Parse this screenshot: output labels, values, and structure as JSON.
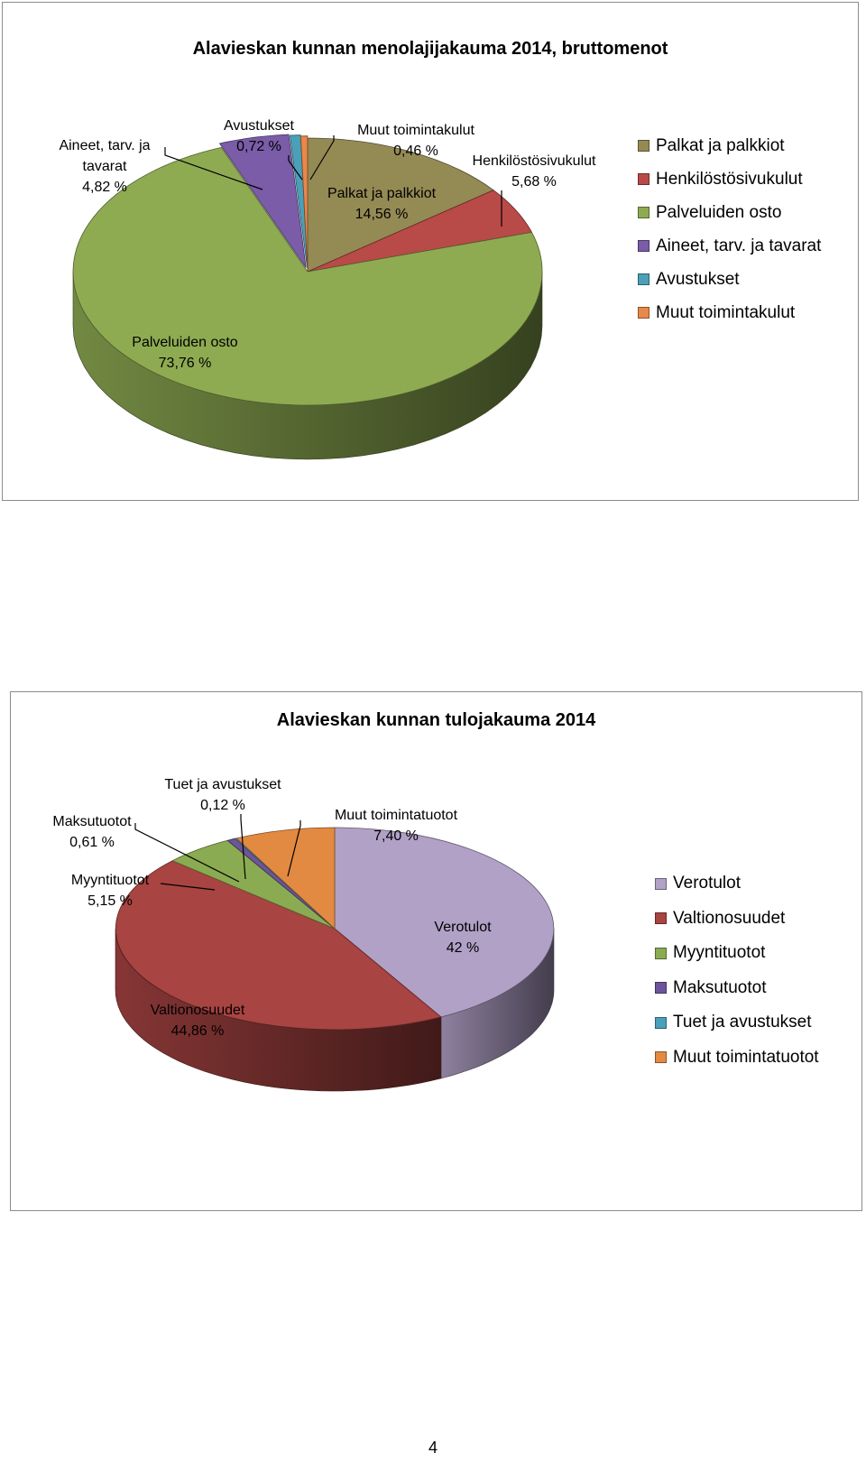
{
  "page_number": "4",
  "chart_data": [
    {
      "type": "pie",
      "title": "Alavieskan kunnan menolajijakauma 2014, bruttomenot",
      "legend_position": "right",
      "categories": [
        "Palkat ja palkkiot",
        "Henkilöstösivukulut",
        "Palveluiden osto",
        "Aineet, tarv. ja tavarat",
        "Avustukset",
        "Muut toimintakulut"
      ],
      "values": [
        14.56,
        5.68,
        73.76,
        4.82,
        0.72,
        0.46
      ],
      "colors": [
        "#948a54",
        "#b84a48",
        "#8eab52",
        "#7a5ca8",
        "#4aa0b8",
        "#e8884a"
      ],
      "label_lines": [
        [
          "Palkat ja palkkiot",
          "14,56 %"
        ],
        [
          "Henkilöstösivukulut",
          "5,68 %"
        ],
        [
          "Palveluiden osto",
          "73,76 %"
        ],
        [
          "Aineet, tarv. ja",
          "tavarat",
          "4,82 %"
        ],
        [
          "Avustukset",
          "0,72 %"
        ],
        [
          "Muut toimintakulut",
          "0,46 %"
        ]
      ]
    },
    {
      "type": "pie",
      "title": "Alavieskan kunnan  tulojakauma 2014",
      "legend_position": "right",
      "categories": [
        "Verotulot",
        "Valtionosuudet",
        "Myyntituotot",
        "Maksutuotot",
        "Tuet ja avustukset",
        "Muut toimintatuotot"
      ],
      "values": [
        42,
        44.86,
        5.15,
        0.61,
        0.12,
        7.4
      ],
      "colors": [
        "#b1a1c7",
        "#a84442",
        "#8bab52",
        "#6e549a",
        "#4aa0b8",
        "#e28a42"
      ],
      "label_lines": [
        [
          "Verotulot",
          "42 %"
        ],
        [
          "Valtionosuudet",
          "44,86 %"
        ],
        [
          "Myyntituotot",
          "5,15 %"
        ],
        [
          "Maksutuotot",
          "0,61 %"
        ],
        [
          "Tuet ja avustukset",
          "0,12 %"
        ],
        [
          "Muut toimintatuotot",
          "7,40 %"
        ]
      ]
    }
  ]
}
